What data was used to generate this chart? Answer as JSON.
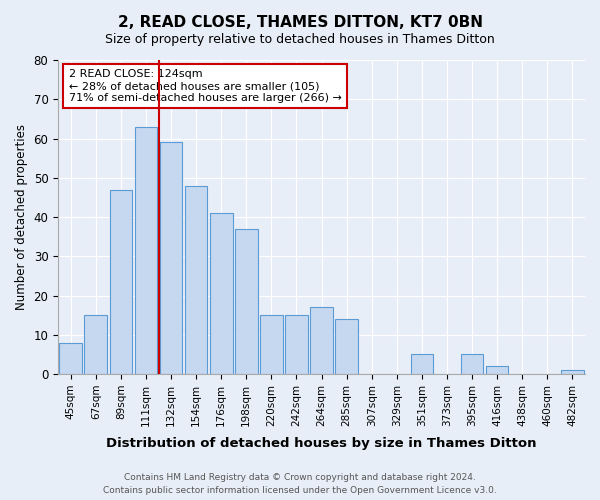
{
  "title": "2, READ CLOSE, THAMES DITTON, KT7 0BN",
  "subtitle": "Size of property relative to detached houses in Thames Ditton",
  "xlabel": "Distribution of detached houses by size in Thames Ditton",
  "ylabel": "Number of detached properties",
  "bar_values": [
    8,
    15,
    47,
    63,
    59,
    48,
    41,
    37,
    15,
    15,
    17,
    14,
    0,
    0,
    5,
    0,
    5,
    2,
    0,
    0,
    1
  ],
  "bar_labels": [
    "45sqm",
    "67sqm",
    "89sqm",
    "111sqm",
    "132sqm",
    "154sqm",
    "176sqm",
    "198sqm",
    "220sqm",
    "242sqm",
    "264sqm",
    "285sqm",
    "307sqm",
    "329sqm",
    "351sqm",
    "373sqm",
    "395sqm",
    "416sqm",
    "438sqm",
    "460sqm",
    "482sqm"
  ],
  "bar_color": "#c5d8f0",
  "bar_edge_color": "#5b9bd5",
  "vline_x": 3.5,
  "vline_color": "#cc0000",
  "annotation_text": "2 READ CLOSE: 124sqm\n← 28% of detached houses are smaller (105)\n71% of semi-detached houses are larger (266) →",
  "annotation_box_color": "#ffffff",
  "annotation_box_edge_color": "#cc0000",
  "ylim": [
    0,
    80
  ],
  "yticks": [
    0,
    10,
    20,
    30,
    40,
    50,
    60,
    70,
    80
  ],
  "footer_text": "Contains HM Land Registry data © Crown copyright and database right 2024.\nContains public sector information licensed under the Open Government Licence v3.0.",
  "bg_color": "#e8eef7",
  "plot_bg_color": "#e8eef7"
}
